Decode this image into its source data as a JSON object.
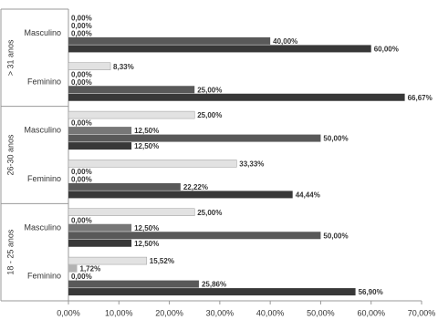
{
  "chart_data": {
    "type": "hbar-grouped",
    "categories": [
      "Masculino",
      "Feminino",
      "Masculino",
      "Feminino",
      "Masculino",
      "Feminino"
    ],
    "groups": [
      "> 31 anos",
      "26-30 anos",
      "18 - 25 anos"
    ],
    "series": [
      {
        "color": "#e2e2e2",
        "values": [
          0,
          8.33,
          25,
          33.33,
          25,
          15.52
        ],
        "value_labels": [
          "0,00%",
          "8,33%",
          "25,00%",
          "33,33%",
          "25,00%",
          "15,52%"
        ]
      },
      {
        "color": "#b3b3b3",
        "values": [
          0,
          0,
          0,
          0,
          0,
          1.72
        ],
        "value_labels": [
          "0,00%",
          "0,00%",
          "0,00%",
          "0,00%",
          "0,00%",
          "1,72%"
        ]
      },
      {
        "color": "#777777",
        "values": [
          0,
          0,
          12.5,
          0,
          12.5,
          0
        ],
        "value_labels": [
          "0,00%",
          "0,00%",
          "12,50%",
          "0,00%",
          "12,50%",
          "0,00%"
        ]
      },
      {
        "color": "#595959",
        "values": [
          40,
          25,
          50,
          22.22,
          50,
          25.86
        ],
        "value_labels": [
          "40,00%",
          "25,00%",
          "50,00%",
          "22,22%",
          "50,00%",
          "25,86%"
        ]
      },
      {
        "color": "#383838",
        "values": [
          60,
          66.67,
          12.5,
          44.44,
          12.5,
          56.9
        ],
        "value_labels": [
          "60,00%",
          "66,67%",
          "12,50%",
          "44,44%",
          "12,50%",
          "56,90%"
        ]
      }
    ],
    "xlim": [
      0,
      70
    ],
    "xticks": [
      {
        "value": 0,
        "label": "0,00%"
      },
      {
        "value": 10,
        "label": "10,00%"
      },
      {
        "value": 20,
        "label": "20,00%"
      },
      {
        "value": 30,
        "label": "30,00%"
      },
      {
        "value": 40,
        "label": "40,00%"
      },
      {
        "value": 50,
        "label": "50,00%"
      },
      {
        "value": 60,
        "label": "60,00%"
      },
      {
        "value": 70,
        "label": "70,00%"
      }
    ]
  }
}
